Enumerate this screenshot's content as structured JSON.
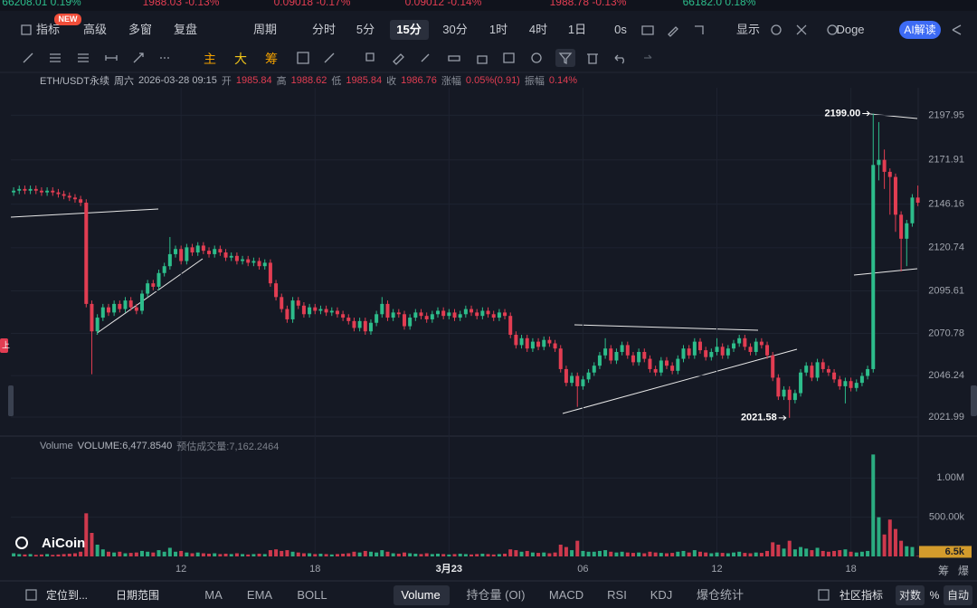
{
  "ticker_strip": [
    "66208.01 0.19%",
    "1988.03 -0.13%",
    "0.09018 -0.17%",
    "0.09012 -0.14%",
    "1988.78 -0.13%",
    "66182.0 0.18%"
  ],
  "toolbar": {
    "items": [
      "指标",
      "高级",
      "多窗",
      "复盘",
      "周期",
      "分时",
      "5分",
      "15分",
      "30分",
      "1时",
      "4时",
      "1日",
      "0s",
      "显示",
      "Doge",
      "AI解读"
    ],
    "badge": "NEW",
    "active_index": 7
  },
  "draw_toolbar": [
    "主",
    "大",
    "筹"
  ],
  "info": {
    "symbol": "ETH/USDT永续",
    "day": "周六",
    "time": "2026-03-28 09:15",
    "fields": [
      {
        "label": "开",
        "value": "1985.84"
      },
      {
        "label": "高",
        "value": "1988.62"
      },
      {
        "label": "低",
        "value": "1985.84"
      },
      {
        "label": "收",
        "value": "1986.76"
      },
      {
        "label": "涨幅",
        "value": "0.05%(0.91)"
      },
      {
        "label": "振幅",
        "value": "0.14%"
      }
    ]
  },
  "volume_header": {
    "name": "Volume",
    "value": "VOLUME:6,477.8540",
    "estimate": "预估成交量:7,162.2464"
  },
  "watermark": "AiCoin",
  "side_label": "上",
  "right_tabs": [
    "筹",
    "爆"
  ],
  "bottom_bar": {
    "left": [
      "定位到...",
      "日期范围"
    ],
    "indicators": [
      "MA",
      "EMA",
      "BOLL",
      "Volume",
      "持仓量 (OI)",
      "MACD",
      "RSI",
      "KDJ",
      "爆仓统计"
    ],
    "active_indicator": 3,
    "right": [
      "社区指标",
      "对数",
      "%",
      "自动"
    ]
  },
  "chart_data": [
    {
      "type": "candlestick",
      "up_color": "#2dbd8b",
      "down_color": "#e23d52",
      "grid": true,
      "ylim": [
        2012,
        2214
      ],
      "yticks": [
        2021.99,
        2046.24,
        2070.78,
        2095.61,
        2120.74,
        2146.16,
        2171.91,
        2197.95
      ],
      "categories": [
        null,
        null,
        null,
        null,
        null,
        null,
        null,
        null,
        null,
        null,
        null,
        null,
        null,
        null,
        null,
        null,
        null,
        null,
        null,
        null,
        null,
        null,
        null,
        null,
        null,
        null,
        null,
        null,
        null,
        null,
        "12",
        null,
        null,
        null,
        null,
        null,
        null,
        null,
        null,
        null,
        null,
        null,
        null,
        null,
        null,
        null,
        null,
        null,
        null,
        null,
        null,
        null,
        null,
        null,
        "18",
        null,
        null,
        null,
        null,
        null,
        null,
        null,
        null,
        null,
        null,
        null,
        null,
        null,
        null,
        null,
        null,
        null,
        null,
        null,
        null,
        null,
        null,
        null,
        "3月23",
        null,
        null,
        null,
        null,
        null,
        null,
        null,
        null,
        null,
        null,
        null,
        null,
        null,
        null,
        null,
        null,
        null,
        null,
        null,
        null,
        null,
        null,
        null,
        "06",
        null,
        null,
        null,
        null,
        null,
        null,
        null,
        null,
        null,
        null,
        null,
        null,
        null,
        null,
        null,
        null,
        null,
        null,
        null,
        null,
        null,
        null,
        null,
        "12",
        null,
        null,
        null,
        null,
        null,
        null,
        null,
        null,
        null,
        null,
        null,
        null,
        null,
        null,
        null,
        null,
        null,
        null,
        null,
        null,
        null,
        null,
        null,
        "18",
        null,
        null,
        null,
        null,
        null,
        null,
        null,
        null,
        null,
        null,
        null,
        null
      ],
      "open": [
        2153,
        2154,
        2155,
        2154,
        2155,
        2154,
        2153,
        2154,
        2153,
        2152,
        2151,
        2150,
        2149,
        2147,
        2088,
        2072,
        2080,
        2086,
        2083,
        2088,
        2085,
        2090,
        2086,
        2084,
        2094,
        2100,
        2098,
        2106,
        2110,
        2117,
        2120,
        2113,
        2121,
        2118,
        2122,
        2119,
        2117,
        2120,
        2118,
        2115,
        2116,
        2113,
        2114,
        2112,
        2113,
        2110,
        2112,
        2100,
        2092,
        2085,
        2079,
        2090,
        2087,
        2082,
        2086,
        2084,
        2085,
        2083,
        2084,
        2082,
        2080,
        2078,
        2074,
        2078,
        2072,
        2077,
        2082,
        2088,
        2080,
        2083,
        2082,
        2075,
        2080,
        2083,
        2081,
        2079,
        2082,
        2084,
        2081,
        2083,
        2080,
        2082,
        2085,
        2083,
        2081,
        2084,
        2082,
        2080,
        2083,
        2081,
        2070,
        2064,
        2068,
        2062,
        2066,
        2063,
        2067,
        2065,
        2062,
        2050,
        2042,
        2046,
        2040,
        2044,
        2048,
        2052,
        2058,
        2062,
        2055,
        2060,
        2064,
        2058,
        2054,
        2060,
        2056,
        2050,
        2048,
        2055,
        2052,
        2049,
        2056,
        2062,
        2058,
        2066,
        2061,
        2057,
        2060,
        2063,
        2058,
        2062,
        2065,
        2068,
        2063,
        2060,
        2066,
        2064,
        2058,
        2045,
        2034,
        2038,
        2032,
        2036,
        2048,
        2052,
        2045,
        2054,
        2050,
        2048,
        2044,
        2040,
        2043,
        2039,
        2042,
        2046,
        2050,
        2169,
        2172,
        2165,
        2162,
        2140,
        2126,
        2135,
        2150
      ],
      "high": [
        2156,
        2157,
        2157,
        2157,
        2157,
        2156,
        2156,
        2156,
        2155,
        2154,
        2153,
        2152,
        2151,
        2149,
        2090,
        2082,
        2088,
        2088,
        2090,
        2090,
        2092,
        2092,
        2088,
        2096,
        2102,
        2102,
        2108,
        2112,
        2127,
        2122,
        2122,
        2123,
        2123,
        2124,
        2124,
        2121,
        2122,
        2122,
        2120,
        2118,
        2118,
        2116,
        2116,
        2115,
        2115,
        2114,
        2114,
        2102,
        2094,
        2087,
        2092,
        2092,
        2089,
        2088,
        2088,
        2087,
        2087,
        2086,
        2086,
        2084,
        2082,
        2080,
        2080,
        2080,
        2079,
        2084,
        2092,
        2090,
        2085,
        2085,
        2084,
        2082,
        2085,
        2085,
        2083,
        2084,
        2086,
        2086,
        2085,
        2085,
        2084,
        2087,
        2087,
        2085,
        2086,
        2086,
        2084,
        2085,
        2085,
        2083,
        2072,
        2070,
        2070,
        2068,
        2068,
        2069,
        2069,
        2067,
        2064,
        2052,
        2048,
        2048,
        2046,
        2050,
        2054,
        2060,
        2068,
        2064,
        2062,
        2066,
        2066,
        2060,
        2062,
        2062,
        2058,
        2052,
        2057,
        2057,
        2054,
        2058,
        2064,
        2064,
        2068,
        2068,
        2063,
        2062,
        2068,
        2065,
        2064,
        2067,
        2070,
        2070,
        2065,
        2068,
        2068,
        2066,
        2060,
        2047,
        2040,
        2040,
        2038,
        2050,
        2054,
        2054,
        2056,
        2056,
        2052,
        2050,
        2046,
        2045,
        2045,
        2044,
        2048,
        2052,
        2199,
        2194,
        2178,
        2167,
        2164,
        2142,
        2137,
        2152,
        2157
      ],
      "low": [
        2151,
        2152,
        2152,
        2152,
        2152,
        2151,
        2151,
        2151,
        2150,
        2149,
        2148,
        2147,
        2145,
        2086,
        2047,
        2070,
        2078,
        2081,
        2081,
        2083,
        2083,
        2084,
        2082,
        2082,
        2092,
        2096,
        2096,
        2104,
        2108,
        2115,
        2111,
        2111,
        2116,
        2116,
        2117,
        2115,
        2115,
        2116,
        2113,
        2113,
        2111,
        2111,
        2110,
        2110,
        2108,
        2108,
        2098,
        2090,
        2083,
        2077,
        2077,
        2085,
        2080,
        2080,
        2082,
        2082,
        2081,
        2081,
        2080,
        2078,
        2076,
        2072,
        2072,
        2070,
        2070,
        2075,
        2080,
        2078,
        2078,
        2080,
        2073,
        2073,
        2078,
        2079,
        2077,
        2077,
        2080,
        2079,
        2079,
        2078,
        2078,
        2080,
        2081,
        2079,
        2079,
        2080,
        2078,
        2078,
        2079,
        2068,
        2062,
        2062,
        2060,
        2060,
        2061,
        2061,
        2063,
        2060,
        2048,
        2040,
        2040,
        2028,
        2038,
        2042,
        2046,
        2050,
        2056,
        2053,
        2053,
        2058,
        2056,
        2052,
        2052,
        2054,
        2048,
        2046,
        2046,
        2050,
        2047,
        2047,
        2054,
        2056,
        2056,
        2059,
        2055,
        2055,
        2058,
        2056,
        2056,
        2060,
        2063,
        2061,
        2058,
        2058,
        2062,
        2056,
        2043,
        2032,
        2032,
        2021.58,
        2030,
        2034,
        2046,
        2043,
        2043,
        2048,
        2046,
        2042,
        2038,
        2030,
        2037,
        2037,
        2040,
        2044,
        2048,
        2160,
        2155,
        2140,
        2130,
        2107,
        2110,
        2133,
        2145
      ],
      "close": [
        2154,
        2155,
        2154,
        2155,
        2154,
        2153,
        2154,
        2153,
        2152,
        2151,
        2150,
        2149,
        2147,
        2088,
        2072,
        2080,
        2086,
        2083,
        2088,
        2085,
        2090,
        2086,
        2084,
        2094,
        2100,
        2098,
        2106,
        2110,
        2117,
        2120,
        2113,
        2121,
        2118,
        2122,
        2119,
        2117,
        2120,
        2118,
        2115,
        2116,
        2113,
        2114,
        2112,
        2113,
        2110,
        2112,
        2100,
        2092,
        2085,
        2079,
        2090,
        2087,
        2082,
        2086,
        2084,
        2085,
        2083,
        2084,
        2082,
        2080,
        2078,
        2074,
        2078,
        2072,
        2077,
        2082,
        2088,
        2080,
        2083,
        2082,
        2075,
        2080,
        2083,
        2081,
        2079,
        2082,
        2084,
        2081,
        2083,
        2080,
        2082,
        2085,
        2083,
        2081,
        2084,
        2082,
        2080,
        2083,
        2081,
        2070,
        2064,
        2068,
        2062,
        2066,
        2063,
        2067,
        2065,
        2062,
        2050,
        2042,
        2046,
        2040,
        2044,
        2048,
        2052,
        2058,
        2062,
        2055,
        2060,
        2064,
        2058,
        2054,
        2060,
        2056,
        2050,
        2048,
        2055,
        2052,
        2049,
        2056,
        2062,
        2058,
        2066,
        2061,
        2057,
        2060,
        2063,
        2058,
        2062,
        2065,
        2068,
        2063,
        2060,
        2066,
        2064,
        2058,
        2045,
        2034,
        2038,
        2032,
        2036,
        2048,
        2052,
        2045,
        2054,
        2050,
        2048,
        2044,
        2040,
        2043,
        2039,
        2042,
        2046,
        2050,
        2169,
        2172,
        2165,
        2162,
        2140,
        2126,
        2135,
        2150,
        2147
      ],
      "annotations": [
        {
          "label": "2199.00",
          "value": 2199
        },
        {
          "label": "2021.58",
          "value": 2021.58
        }
      ]
    },
    {
      "type": "bar",
      "up_color": "#2dbd8b",
      "down_color": "#e23d52",
      "ylim": [
        0,
        1500000
      ],
      "yticks": [
        {
          "value": 500000,
          "label": "500.00k"
        },
        {
          "value": 1000000,
          "label": "1.00M"
        }
      ],
      "values": [
        40000,
        30000,
        25000,
        30000,
        20000,
        25000,
        30000,
        20000,
        25000,
        30000,
        35000,
        40000,
        60000,
        550000,
        300000,
        150000,
        90000,
        60000,
        50000,
        60000,
        40000,
        45000,
        50000,
        70000,
        60000,
        50000,
        80000,
        60000,
        110000,
        60000,
        70000,
        50000,
        40000,
        50000,
        40000,
        35000,
        40000,
        30000,
        35000,
        30000,
        40000,
        30000,
        25000,
        30000,
        35000,
        30000,
        80000,
        90000,
        70000,
        80000,
        60000,
        50000,
        40000,
        40000,
        30000,
        35000,
        30000,
        25000,
        30000,
        35000,
        40000,
        60000,
        50000,
        70000,
        60000,
        50000,
        80000,
        60000,
        40000,
        35000,
        50000,
        40000,
        35000,
        30000,
        40000,
        30000,
        35000,
        30000,
        25000,
        30000,
        35000,
        30000,
        25000,
        30000,
        35000,
        30000,
        25000,
        30000,
        35000,
        90000,
        80000,
        60000,
        70000,
        50000,
        45000,
        50000,
        40000,
        50000,
        150000,
        120000,
        80000,
        200000,
        70000,
        60000,
        60000,
        70000,
        80000,
        60000,
        50000,
        60000,
        50000,
        45000,
        50000,
        40000,
        60000,
        50000,
        45000,
        40000,
        45000,
        60000,
        70000,
        50000,
        80000,
        60000,
        50000,
        40000,
        50000,
        45000,
        40000,
        50000,
        60000,
        45000,
        40000,
        50000,
        45000,
        70000,
        180000,
        150000,
        100000,
        200000,
        90000,
        120000,
        100000,
        80000,
        110000,
        70000,
        60000,
        70000,
        80000,
        90000,
        60000,
        50000,
        60000,
        70000,
        1300000,
        500000,
        280000,
        470000,
        350000,
        200000,
        130000,
        120000,
        6477.854
      ],
      "last_label": "6.5k"
    }
  ]
}
